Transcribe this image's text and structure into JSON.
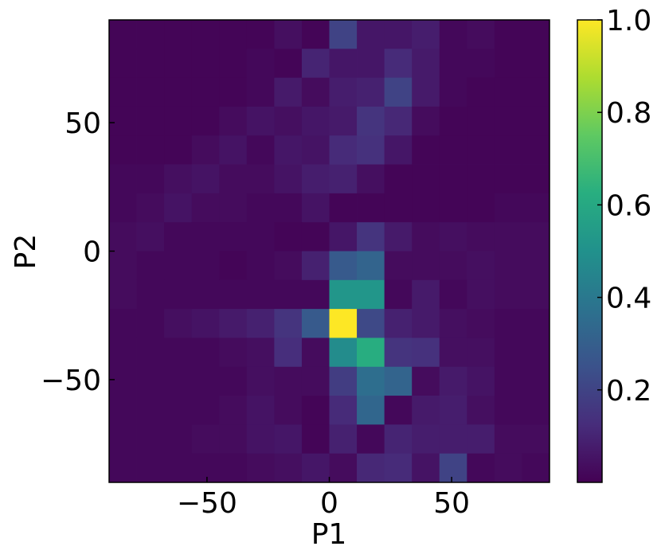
{
  "chart_data": {
    "type": "heatmap",
    "title": "",
    "xlabel": "P1",
    "ylabel": "P2",
    "xlim": [
      -90,
      90
    ],
    "ylim": [
      -90,
      90
    ],
    "x_bin_edges": [
      -90,
      -78.75,
      -67.5,
      -56.25,
      -45,
      -33.75,
      -22.5,
      -11.25,
      0,
      11.25,
      22.5,
      33.75,
      45,
      56.25,
      67.5,
      78.75,
      90
    ],
    "y_bin_edges": [
      -90,
      -78.75,
      -67.5,
      -56.25,
      -45,
      -33.75,
      -22.5,
      -11.25,
      0,
      11.25,
      22.5,
      33.75,
      45,
      56.25,
      67.5,
      78.75,
      90
    ],
    "x_ticks": [
      -50,
      0,
      50
    ],
    "x_tick_labels": [
      "−50",
      "0",
      "50"
    ],
    "y_ticks": [
      -50,
      0,
      50
    ],
    "y_tick_labels": [
      "−50",
      "0",
      "50"
    ],
    "values_top_to_bottom": [
      [
        0.01,
        0.01,
        0.01,
        0.01,
        0.01,
        0.01,
        0.04,
        0.01,
        0.2,
        0.06,
        0.06,
        0.08,
        0.02,
        0.03,
        0.01,
        0.01
      ],
      [
        0.01,
        0.01,
        0.01,
        0.01,
        0.01,
        0.02,
        0.01,
        0.1,
        0.06,
        0.06,
        0.12,
        0.07,
        0.02,
        0.02,
        0.01,
        0.01
      ],
      [
        0.01,
        0.01,
        0.01,
        0.01,
        0.01,
        0.02,
        0.07,
        0.03,
        0.08,
        0.09,
        0.2,
        0.07,
        0.02,
        0.01,
        0.01,
        0.01
      ],
      [
        0.01,
        0.01,
        0.01,
        0.01,
        0.03,
        0.05,
        0.04,
        0.06,
        0.07,
        0.15,
        0.11,
        0.03,
        0.01,
        0.01,
        0.01,
        0.01
      ],
      [
        0.01,
        0.01,
        0.01,
        0.03,
        0.05,
        0.02,
        0.06,
        0.05,
        0.12,
        0.14,
        0.06,
        0.01,
        0.01,
        0.01,
        0.01,
        0.01
      ],
      [
        0.02,
        0.02,
        0.04,
        0.05,
        0.03,
        0.03,
        0.05,
        0.08,
        0.09,
        0.04,
        0.01,
        0.01,
        0.01,
        0.01,
        0.01,
        0.01
      ],
      [
        0.02,
        0.03,
        0.05,
        0.03,
        0.03,
        0.02,
        0.02,
        0.05,
        0.01,
        0.01,
        0.01,
        0.01,
        0.01,
        0.01,
        0.02,
        0.02
      ],
      [
        0.03,
        0.04,
        0.02,
        0.02,
        0.02,
        0.02,
        0.01,
        0.01,
        0.06,
        0.15,
        0.07,
        0.03,
        0.04,
        0.03,
        0.03,
        0.03
      ],
      [
        0.03,
        0.02,
        0.02,
        0.02,
        0.01,
        0.02,
        0.03,
        0.09,
        0.28,
        0.32,
        0.03,
        0.03,
        0.03,
        0.04,
        0.03,
        0.03
      ],
      [
        0.03,
        0.02,
        0.02,
        0.02,
        0.02,
        0.02,
        0.02,
        0.02,
        0.52,
        0.52,
        0.02,
        0.07,
        0.02,
        0.04,
        0.03,
        0.03
      ],
      [
        0.02,
        0.02,
        0.04,
        0.05,
        0.07,
        0.09,
        0.15,
        0.28,
        1.0,
        0.22,
        0.09,
        0.07,
        0.04,
        0.03,
        0.02,
        0.02
      ],
      [
        0.02,
        0.02,
        0.02,
        0.02,
        0.03,
        0.04,
        0.13,
        0.03,
        0.48,
        0.62,
        0.15,
        0.14,
        0.04,
        0.04,
        0.02,
        0.02
      ],
      [
        0.02,
        0.02,
        0.02,
        0.02,
        0.02,
        0.04,
        0.03,
        0.03,
        0.18,
        0.36,
        0.32,
        0.03,
        0.07,
        0.05,
        0.02,
        0.02
      ],
      [
        0.02,
        0.02,
        0.02,
        0.02,
        0.03,
        0.05,
        0.03,
        0.01,
        0.12,
        0.33,
        0.02,
        0.07,
        0.08,
        0.04,
        0.02,
        0.02
      ],
      [
        0.02,
        0.02,
        0.02,
        0.03,
        0.03,
        0.05,
        0.06,
        0.01,
        0.09,
        0.02,
        0.1,
        0.08,
        0.08,
        0.08,
        0.03,
        0.03
      ],
      [
        0.02,
        0.02,
        0.02,
        0.02,
        0.02,
        0.03,
        0.04,
        0.06,
        0.03,
        0.11,
        0.12,
        0.05,
        0.2,
        0.02,
        0.03,
        0.02
      ]
    ],
    "colorbar": {
      "colormap": "viridis",
      "range": [
        0,
        1
      ],
      "ticks": [
        0.2,
        0.4,
        0.6,
        0.8,
        1.0
      ],
      "tick_labels": [
        "0.2",
        "0.4",
        "0.6",
        "0.8",
        "1.0"
      ]
    },
    "grid": false
  }
}
